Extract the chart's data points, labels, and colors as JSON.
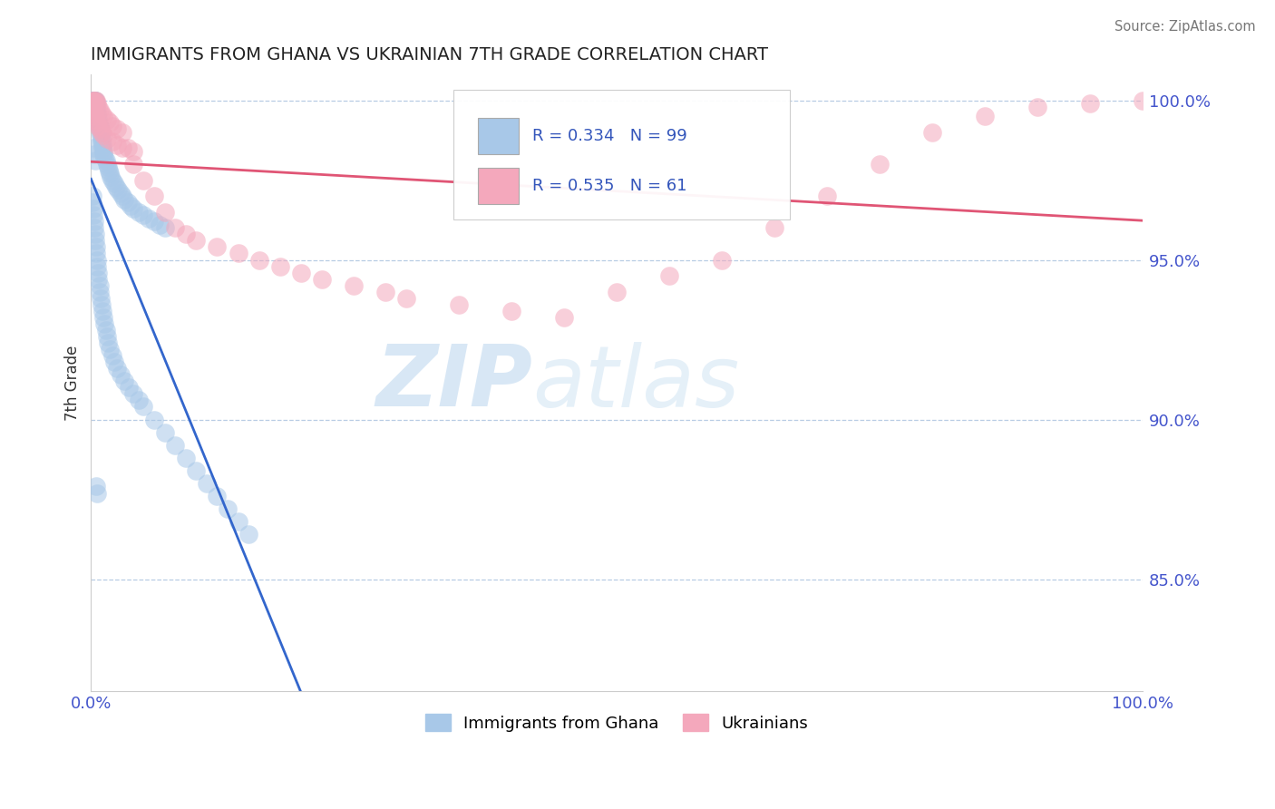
{
  "title": "IMMIGRANTS FROM GHANA VS UKRAINIAN 7TH GRADE CORRELATION CHART",
  "source_text": "Source: ZipAtlas.com",
  "ylabel_label": "7th Grade",
  "legend_entries": [
    "Immigrants from Ghana",
    "Ukrainians"
  ],
  "r_ghana": 0.334,
  "n_ghana": 99,
  "r_ukraine": 0.535,
  "n_ukraine": 61,
  "blue_color": "#a8c8e8",
  "pink_color": "#f4a8bc",
  "blue_line_color": "#3366cc",
  "pink_line_color": "#e05575",
  "watermark_zip": "ZIP",
  "watermark_atlas": "atlas",
  "xlim": [
    0.0,
    1.0
  ],
  "ylim": [
    0.815,
    1.008
  ],
  "yticks": [
    0.85,
    0.9,
    0.95,
    1.0
  ],
  "ytick_labels": [
    "85.0%",
    "90.0%",
    "95.0%",
    "100.0%"
  ],
  "xtick_labels": [
    "0.0%",
    "100.0%"
  ],
  "ghana_x": [
    0.001,
    0.001,
    0.002,
    0.002,
    0.003,
    0.003,
    0.003,
    0.004,
    0.004,
    0.004,
    0.005,
    0.005,
    0.005,
    0.006,
    0.006,
    0.007,
    0.007,
    0.008,
    0.008,
    0.009,
    0.009,
    0.01,
    0.01,
    0.011,
    0.011,
    0.012,
    0.012,
    0.013,
    0.014,
    0.015,
    0.016,
    0.017,
    0.018,
    0.019,
    0.02,
    0.022,
    0.024,
    0.026,
    0.028,
    0.03,
    0.032,
    0.035,
    0.038,
    0.04,
    0.045,
    0.05,
    0.055,
    0.06,
    0.065,
    0.07,
    0.001,
    0.001,
    0.002,
    0.002,
    0.003,
    0.003,
    0.004,
    0.004,
    0.005,
    0.005,
    0.006,
    0.006,
    0.007,
    0.007,
    0.008,
    0.008,
    0.009,
    0.01,
    0.011,
    0.012,
    0.013,
    0.014,
    0.015,
    0.016,
    0.018,
    0.02,
    0.022,
    0.025,
    0.028,
    0.032,
    0.036,
    0.04,
    0.045,
    0.05,
    0.06,
    0.07,
    0.08,
    0.09,
    0.1,
    0.11,
    0.12,
    0.13,
    0.14,
    0.15,
    0.002,
    0.003,
    0.004,
    0.005,
    0.006
  ],
  "ghana_y": [
    1.0,
    1.0,
    1.0,
    1.0,
    1.0,
    1.0,
    1.0,
    1.0,
    1.0,
    1.0,
    0.999,
    0.998,
    0.997,
    0.996,
    0.995,
    0.994,
    0.993,
    0.992,
    0.991,
    0.99,
    0.989,
    0.988,
    0.987,
    0.986,
    0.985,
    0.984,
    0.983,
    0.982,
    0.981,
    0.98,
    0.979,
    0.978,
    0.977,
    0.976,
    0.975,
    0.974,
    0.973,
    0.972,
    0.971,
    0.97,
    0.969,
    0.968,
    0.967,
    0.966,
    0.965,
    0.964,
    0.963,
    0.962,
    0.961,
    0.96,
    0.97,
    0.968,
    0.966,
    0.964,
    0.962,
    0.96,
    0.958,
    0.956,
    0.954,
    0.952,
    0.95,
    0.948,
    0.946,
    0.944,
    0.942,
    0.94,
    0.938,
    0.936,
    0.934,
    0.932,
    0.93,
    0.928,
    0.926,
    0.924,
    0.922,
    0.92,
    0.918,
    0.916,
    0.914,
    0.912,
    0.91,
    0.908,
    0.906,
    0.904,
    0.9,
    0.896,
    0.892,
    0.888,
    0.884,
    0.88,
    0.876,
    0.872,
    0.868,
    0.864,
    0.985,
    0.983,
    0.981,
    0.879,
    0.877
  ],
  "ukraine_x": [
    0.001,
    0.002,
    0.003,
    0.004,
    0.005,
    0.006,
    0.007,
    0.008,
    0.01,
    0.012,
    0.015,
    0.018,
    0.02,
    0.025,
    0.03,
    0.035,
    0.04,
    0.05,
    0.06,
    0.07,
    0.08,
    0.09,
    0.1,
    0.12,
    0.14,
    0.16,
    0.18,
    0.2,
    0.22,
    0.25,
    0.28,
    0.3,
    0.35,
    0.4,
    0.45,
    0.5,
    0.55,
    0.6,
    0.65,
    0.7,
    0.75,
    0.8,
    0.85,
    0.9,
    0.95,
    1.0,
    0.001,
    0.002,
    0.003,
    0.004,
    0.005,
    0.006,
    0.007,
    0.008,
    0.01,
    0.012,
    0.015,
    0.02,
    0.025,
    0.03,
    0.04
  ],
  "ukraine_y": [
    1.0,
    1.0,
    1.0,
    1.0,
    1.0,
    0.999,
    0.998,
    0.997,
    0.996,
    0.995,
    0.994,
    0.993,
    0.992,
    0.991,
    0.99,
    0.985,
    0.98,
    0.975,
    0.97,
    0.965,
    0.96,
    0.958,
    0.956,
    0.954,
    0.952,
    0.95,
    0.948,
    0.946,
    0.944,
    0.942,
    0.94,
    0.938,
    0.936,
    0.934,
    0.932,
    0.94,
    0.945,
    0.95,
    0.96,
    0.97,
    0.98,
    0.99,
    0.995,
    0.998,
    0.999,
    1.0,
    0.998,
    0.997,
    0.996,
    0.995,
    0.994,
    0.993,
    0.992,
    0.991,
    0.99,
    0.989,
    0.988,
    0.987,
    0.986,
    0.985,
    0.984
  ]
}
